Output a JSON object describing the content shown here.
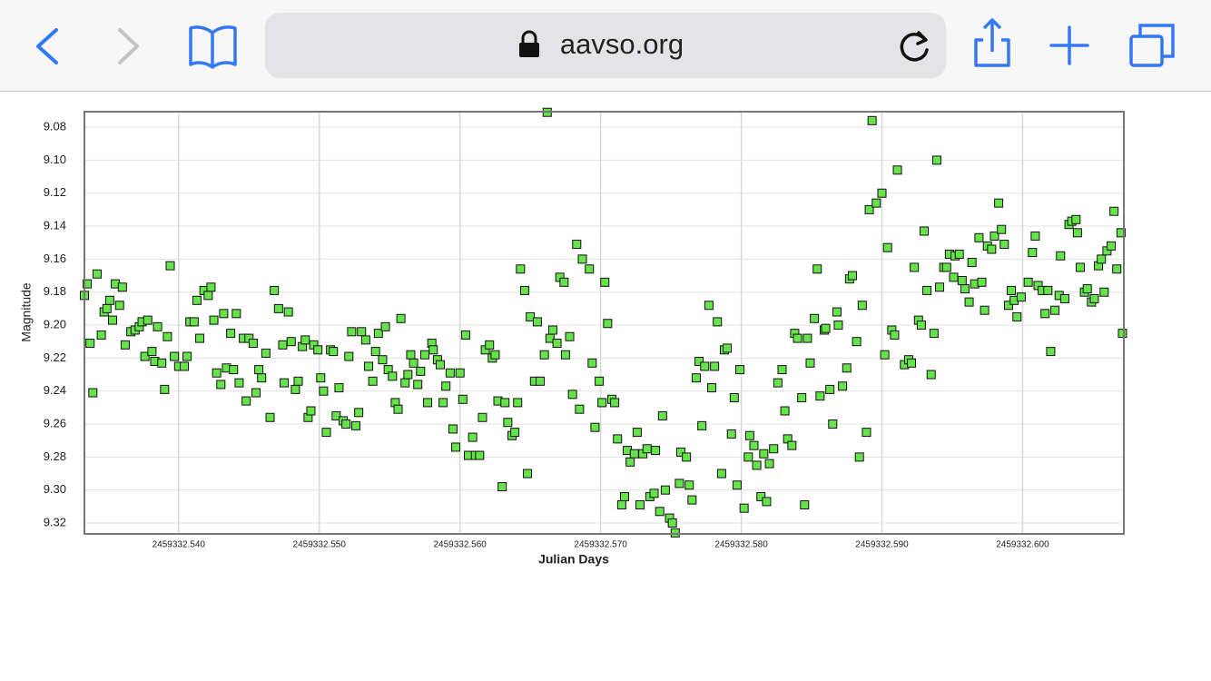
{
  "browser": {
    "url": "aavso.org"
  },
  "chart_data": {
    "type": "scatter",
    "x_label": "Julian Days",
    "y_label": "Magnitude",
    "color": "#66e34a",
    "grid": true,
    "y_inverted": true,
    "xlim": [
      2459332.5333,
      2459332.6072
    ],
    "ylim": [
      9.3266,
      9.0706
    ],
    "xticks": [
      {
        "value": 2459332.54,
        "label": "2459332.540"
      },
      {
        "value": 2459332.55,
        "label": "2459332.550"
      },
      {
        "value": 2459332.56,
        "label": "2459332.560"
      },
      {
        "value": 2459332.57,
        "label": "2459332.570"
      },
      {
        "value": 2459332.58,
        "label": "2459332.580"
      },
      {
        "value": 2459332.59,
        "label": "2459332.590"
      },
      {
        "value": 2459332.6,
        "label": "2459332.600"
      }
    ],
    "yticks": [
      9.08,
      {
        "value": 9.1,
        "label": "9.10"
      },
      9.12,
      9.14,
      9.16,
      9.18,
      {
        "value": 9.2,
        "label": "9.20"
      },
      9.22,
      9.24,
      9.26,
      9.28,
      {
        "value": 9.3,
        "label": "9.30"
      },
      9.32
    ],
    "x": [
      2459332.5333,
      2459332.5335,
      2459332.5337,
      2459332.5339,
      2459332.5342,
      2459332.5345,
      2459332.5347,
      2459332.5349,
      2459332.5351,
      2459332.5353,
      2459332.5355,
      2459332.5358,
      2459332.536,
      2459332.5362,
      2459332.5366,
      2459332.5369,
      2459332.5372,
      2459332.5374,
      2459332.5376,
      2459332.5378,
      2459332.5381,
      2459332.5383,
      2459332.5385,
      2459332.5388,
      2459332.539,
      2459332.5392,
      2459332.5394,
      2459332.5397,
      2459332.54,
      2459332.5404,
      2459332.5406,
      2459332.5408,
      2459332.5411,
      2459332.5413,
      2459332.5415,
      2459332.5418,
      2459332.5421,
      2459332.5423,
      2459332.5425,
      2459332.5427,
      2459332.543,
      2459332.5432,
      2459332.5434,
      2459332.5437,
      2459332.5439,
      2459332.5441,
      2459332.5443,
      2459332.5446,
      2459332.5448,
      2459332.545,
      2459332.5453,
      2459332.5455,
      2459332.5457,
      2459332.5459,
      2459332.5462,
      2459332.5465,
      2459332.5468,
      2459332.5471,
      2459332.5474,
      2459332.5475,
      2459332.5478,
      2459332.548,
      2459332.5483,
      2459332.5485,
      2459332.5488,
      2459332.549,
      2459332.5492,
      2459332.5494,
      2459332.5496,
      2459332.5499,
      2459332.5501,
      2459332.5503,
      2459332.5505,
      2459332.5508,
      2459332.551,
      2459332.5512,
      2459332.5514,
      2459332.5517,
      2459332.5519,
      2459332.5521,
      2459332.5523,
      2459332.5526,
      2459332.5528,
      2459332.553,
      2459332.5533,
      2459332.5535,
      2459332.5538,
      2459332.554,
      2459332.5542,
      2459332.5545,
      2459332.5547,
      2459332.5549,
      2459332.5552,
      2459332.5554,
      2459332.5556,
      2459332.5558,
      2459332.5561,
      2459332.5563,
      2459332.5565,
      2459332.5567,
      2459332.557,
      2459332.5572,
      2459332.5575,
      2459332.5577,
      2459332.558,
      2459332.5581,
      2459332.5584,
      2459332.5586,
      2459332.5588,
      2459332.559,
      2459332.5593,
      2459332.5595,
      2459332.5597,
      2459332.56,
      2459332.5602,
      2459332.5604,
      2459332.5606,
      2459332.5609,
      2459332.5611,
      2459332.5614,
      2459332.5616,
      2459332.5618,
      2459332.5621,
      2459332.5623,
      2459332.5625,
      2459332.5627,
      2459332.563,
      2459332.5632,
      2459332.5634,
      2459332.5637,
      2459332.5639,
      2459332.5641,
      2459332.5643,
      2459332.5646,
      2459332.5648,
      2459332.565,
      2459332.5653,
      2459332.5655,
      2459332.5657,
      2459332.566,
      2459332.5662,
      2459332.5664,
      2459332.5666,
      2459332.5669,
      2459332.5671,
      2459332.5674,
      2459332.5675,
      2459332.5678,
      2459332.568,
      2459332.5683,
      2459332.5685,
      2459332.5687,
      2459332.5692,
      2459332.5694,
      2459332.5696,
      2459332.5699,
      2459332.5701,
      2459332.5703,
      2459332.5705,
      2459332.5708,
      2459332.571,
      2459332.5712,
      2459332.5715,
      2459332.5717,
      2459332.5719,
      2459332.5721,
      2459332.5724,
      2459332.5726,
      2459332.5728,
      2459332.573,
      2459332.5733,
      2459332.5735,
      2459332.5738,
      2459332.5739,
      2459332.5742,
      2459332.5744,
      2459332.5746,
      2459332.5749,
      2459332.5751,
      2459332.5753,
      2459332.5756,
      2459332.5757,
      2459332.5761,
      2459332.5763,
      2459332.5765,
      2459332.5768,
      2459332.577,
      2459332.5772,
      2459332.5774,
      2459332.5777,
      2459332.5779,
      2459332.5781,
      2459332.5783,
      2459332.5786,
      2459332.5788,
      2459332.579,
      2459332.5793,
      2459332.5795,
      2459332.5797,
      2459332.5799,
      2459332.5802,
      2459332.5805,
      2459332.5806,
      2459332.5809,
      2459332.5811,
      2459332.5814,
      2459332.5816,
      2459332.5818,
      2459332.582,
      2459332.5823,
      2459332.5826,
      2459332.5829,
      2459332.5831,
      2459332.5833,
      2459332.5836,
      2459332.5838,
      2459332.584,
      2459332.5843,
      2459332.5845,
      2459332.5847,
      2459332.5849,
      2459332.5852,
      2459332.5854,
      2459332.5856,
      2459332.5859,
      2459332.586,
      2459332.5863,
      2459332.5865,
      2459332.5868,
      2459332.5869,
      2459332.5872,
      2459332.5875,
      2459332.5877,
      2459332.5879,
      2459332.5882,
      2459332.5884,
      2459332.5886,
      2459332.5889,
      2459332.5891,
      2459332.5893,
      2459332.5896,
      2459332.59,
      2459332.5902,
      2459332.5904,
      2459332.5907,
      2459332.5909,
      2459332.5911,
      2459332.5916,
      2459332.5919,
      2459332.5921,
      2459332.5923,
      2459332.5926,
      2459332.5928,
      2459332.593,
      2459332.5932,
      2459332.5935,
      2459332.5937,
      2459332.5939,
      2459332.5941,
      2459332.5944,
      2459332.5946,
      2459332.5948,
      2459332.5951,
      2459332.5952,
      2459332.5955,
      2459332.5957,
      2459332.5959,
      2459332.5962,
      2459332.5964,
      2459332.5966,
      2459332.5969,
      2459332.5971,
      2459332.5973,
      2459332.5975,
      2459332.5978,
      2459332.598,
      2459332.5983,
      2459332.5985,
      2459332.5987,
      2459332.599,
      2459332.5992,
      2459332.5994,
      2459332.5996,
      2459332.5999,
      2459332.6004,
      2459332.6007,
      2459332.6009,
      2459332.6011,
      2459332.6014,
      2459332.6016,
      2459332.6018,
      2459332.602,
      2459332.6023,
      2459332.6026,
      2459332.6027,
      2459332.603,
      2459332.6033,
      2459332.6035,
      2459332.6038,
      2459332.6039,
      2459332.6041,
      2459332.6044,
      2459332.6046,
      2459332.6049,
      2459332.6051,
      2459332.6054,
      2459332.6056,
      2459332.6058,
      2459332.606,
      2459332.6063,
      2459332.6065,
      2459332.6067,
      2459332.607,
      2459332.6071
    ],
    "values": [
      9.182,
      9.175,
      9.211,
      9.241,
      9.169,
      9.206,
      9.192,
      9.19,
      9.185,
      9.197,
      9.175,
      9.188,
      9.177,
      9.212,
      9.204,
      9.203,
      9.201,
      9.198,
      9.219,
      9.197,
      9.216,
      9.222,
      9.201,
      9.223,
      9.239,
      9.207,
      9.164,
      9.219,
      9.225,
      9.225,
      9.219,
      9.198,
      9.198,
      9.185,
      9.208,
      9.179,
      9.182,
      9.177,
      9.197,
      9.229,
      9.236,
      9.193,
      9.226,
      9.205,
      9.227,
      9.193,
      9.235,
      9.208,
      9.246,
      9.208,
      9.211,
      9.241,
      9.227,
      9.232,
      9.217,
      9.256,
      9.179,
      9.19,
      9.212,
      9.235,
      9.192,
      9.21,
      9.239,
      9.234,
      9.213,
      9.209,
      9.256,
      9.252,
      9.212,
      9.215,
      9.232,
      9.24,
      9.265,
      9.215,
      9.216,
      9.255,
      9.238,
      9.258,
      9.26,
      9.219,
      9.204,
      9.261,
      9.253,
      9.204,
      9.209,
      9.225,
      9.234,
      9.216,
      9.205,
      9.221,
      9.201,
      9.227,
      9.231,
      9.247,
      9.251,
      9.196,
      9.235,
      9.23,
      9.218,
      9.223,
      9.236,
      9.228,
      9.218,
      9.247,
      9.211,
      9.215,
      9.221,
      9.224,
      9.247,
      9.237,
      9.229,
      9.263,
      9.274,
      9.229,
      9.245,
      9.206,
      9.279,
      9.268,
      9.279,
      9.279,
      9.256,
      9.215,
      9.212,
      9.22,
      9.218,
      9.246,
      9.298,
      9.247,
      9.259,
      9.267,
      9.265,
      9.247,
      9.166,
      9.179,
      9.29,
      9.195,
      9.234,
      9.198,
      9.234,
      9.218,
      9.071,
      9.208,
      9.203,
      9.211,
      9.171,
      9.174,
      9.218,
      9.207,
      9.242,
      9.151,
      9.251,
      9.16,
      9.166,
      9.223,
      9.262,
      9.234,
      9.247,
      9.174,
      9.199,
      9.245,
      9.247,
      9.269,
      9.309,
      9.304,
      9.276,
      9.283,
      9.278,
      9.265,
      9.309,
      9.278,
      9.275,
      9.304,
      9.302,
      9.276,
      9.313,
      9.255,
      9.3,
      9.317,
      9.32,
      9.326,
      9.296,
      9.277,
      9.28,
      9.297,
      9.306,
      9.232,
      9.222,
      9.261,
      9.225,
      9.188,
      9.238,
      9.225,
      9.198,
      9.29,
      9.215,
      9.214,
      9.266,
      9.244,
      9.297,
      9.227,
      9.311,
      9.28,
      9.267,
      9.273,
      9.285,
      9.304,
      9.278,
      9.307,
      9.284,
      9.275,
      9.235,
      9.227,
      9.252,
      9.269,
      9.273,
      9.205,
      9.208,
      9.244,
      9.309,
      9.208,
      9.223,
      9.196,
      9.166,
      9.243,
      9.203,
      9.202,
      9.239,
      9.26,
      9.192,
      9.2,
      9.237,
      9.226,
      9.172,
      9.17,
      9.21,
      9.28,
      9.188,
      9.265,
      9.13,
      9.076,
      9.126,
      9.12,
      9.218,
      9.153,
      9.203,
      9.206,
      9.106,
      9.224,
      9.221,
      9.223,
      9.165,
      9.197,
      9.2,
      9.143,
      9.179,
      9.23,
      9.205,
      9.1,
      9.177,
      9.165,
      9.165,
      9.157,
      9.171,
      9.158,
      9.157,
      9.173,
      9.178,
      9.186,
      9.162,
      9.175,
      9.147,
      9.174,
      9.191,
      9.152,
      9.154,
      9.146,
      9.126,
      9.142,
      9.151,
      9.188,
      9.179,
      9.185,
      9.195,
      9.183,
      9.174,
      9.156,
      9.146,
      9.176,
      9.179,
      9.193,
      9.179,
      9.216,
      9.191,
      9.182,
      9.158,
      9.184,
      9.139,
      9.137,
      9.136,
      9.144,
      9.165,
      9.18,
      9.178,
      9.186,
      9.184,
      9.164,
      9.16,
      9.18,
      9.155,
      9.152,
      9.131,
      9.166,
      9.144,
      9.205
    ]
  }
}
